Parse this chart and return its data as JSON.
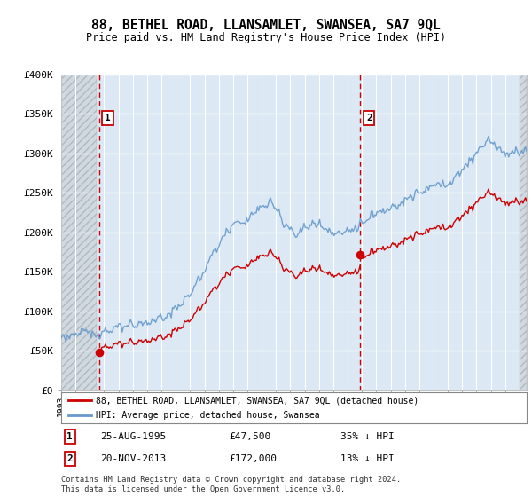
{
  "title": "88, BETHEL ROAD, LLANSAMLET, SWANSEA, SA7 9QL",
  "subtitle": "Price paid vs. HM Land Registry's House Price Index (HPI)",
  "sale1_date": "25-AUG-1995",
  "sale1_price": 47500,
  "sale1_label": "35% ↓ HPI",
  "sale1_year": 1995.65,
  "sale2_date": "20-NOV-2013",
  "sale2_price": 172000,
  "sale2_label": "13% ↓ HPI",
  "sale2_year": 2013.89,
  "legend_line1": "88, BETHEL ROAD, LLANSAMLET, SWANSEA, SA7 9QL (detached house)",
  "legend_line2": "HPI: Average price, detached house, Swansea",
  "footnote": "Contains HM Land Registry data © Crown copyright and database right 2024.\nThis data is licensed under the Open Government Licence v3.0.",
  "ylim": [
    0,
    400000
  ],
  "yticks": [
    0,
    50000,
    100000,
    150000,
    200000,
    250000,
    300000,
    350000,
    400000
  ],
  "ytick_labels": [
    "£0",
    "£50K",
    "£100K",
    "£150K",
    "£200K",
    "£250K",
    "£300K",
    "£350K",
    "£400K"
  ],
  "plot_bg_color": "#dce9f5",
  "hatch_bg_color": "#d0d8e0",
  "grid_color": "#ffffff",
  "hpi_color": "#6699cc",
  "price_color": "#cc0000",
  "xmin": 1993,
  "xmax": 2025.5,
  "hatch_left_end": 1995.5,
  "hatch_right_start": 2025.0
}
